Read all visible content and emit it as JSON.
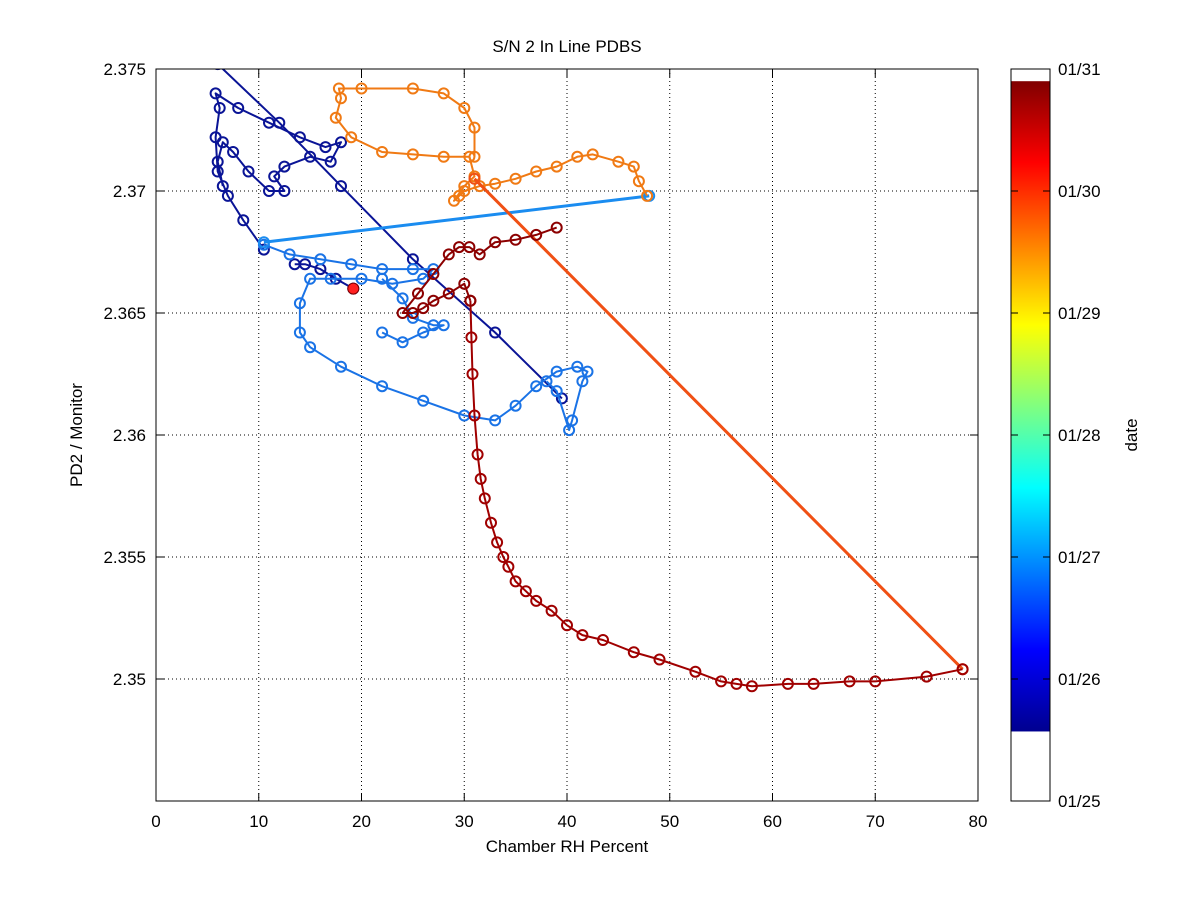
{
  "chart_data": {
    "type": "scatter",
    "title": "S/N 2 In Line PDBS",
    "xlabel": "Chamber RH Percent",
    "ylabel": "PD2 / Monitor",
    "xlim": [
      0,
      80
    ],
    "ylim": [
      2.345,
      2.375
    ],
    "xticks": [
      "0",
      "10",
      "20",
      "30",
      "40",
      "50",
      "60",
      "70",
      "80"
    ],
    "yticks": [
      "2.35",
      "2.355",
      "2.36",
      "2.365",
      "2.37",
      "2.375"
    ],
    "grid": true,
    "marker": "circle",
    "colormap": "jet",
    "colorbar": {
      "label": "date",
      "ticks": [
        "01/25",
        "01/26",
        "01/27",
        "01/28",
        "01/29",
        "01/30",
        "01/31"
      ],
      "range": [
        0,
        6
      ],
      "gradient_range": [
        0.57,
        5.9
      ],
      "gradient_colors": [
        "#00008f",
        "#0000ff",
        "#0080ff",
        "#00ffff",
        "#80ff80",
        "#ffff00",
        "#ff8000",
        "#ff0000",
        "#800000"
      ]
    },
    "series": [
      {
        "color": "#0a1496",
        "width": 2,
        "points": [
          [
            19.2,
            2.366
          ],
          [
            17.5,
            2.3664
          ],
          [
            16,
            2.3668
          ],
          [
            14.5,
            2.367
          ],
          [
            13.5,
            2.367
          ]
        ]
      },
      {
        "color": "#0a1496",
        "width": 2,
        "points": [
          [
            39.5,
            2.3615
          ],
          [
            33,
            2.3642
          ],
          [
            25,
            2.3672
          ],
          [
            18,
            2.3702
          ],
          [
            12,
            2.3728
          ],
          [
            6,
            2.3752
          ]
        ]
      },
      {
        "color": "#0a1496",
        "width": 2,
        "points": [
          [
            10.5,
            2.3676
          ],
          [
            8.5,
            2.3688
          ],
          [
            7,
            2.3698
          ],
          [
            6,
            2.3708
          ],
          [
            5.8,
            2.3722
          ],
          [
            6.2,
            2.3734
          ],
          [
            5.8,
            2.374
          ],
          [
            8,
            2.3734
          ],
          [
            11,
            2.3728
          ],
          [
            14,
            2.3722
          ],
          [
            16.5,
            2.3718
          ],
          [
            18,
            2.372
          ],
          [
            17,
            2.3712
          ],
          [
            15,
            2.3714
          ],
          [
            12.5,
            2.371
          ],
          [
            11.5,
            2.3706
          ],
          [
            12.5,
            2.37
          ],
          [
            11,
            2.37
          ],
          [
            9,
            2.3708
          ],
          [
            7.5,
            2.3716
          ],
          [
            6.5,
            2.372
          ],
          [
            6,
            2.3712
          ],
          [
            6.5,
            2.3702
          ]
        ]
      },
      {
        "color": "#1a73e6",
        "width": 2,
        "points": [
          [
            10.5,
            2.3678
          ],
          [
            13,
            2.3674
          ],
          [
            16,
            2.3672
          ],
          [
            19,
            2.367
          ],
          [
            22,
            2.3668
          ],
          [
            25,
            2.3668
          ],
          [
            27,
            2.3668
          ],
          [
            26,
            2.3664
          ],
          [
            23,
            2.3662
          ],
          [
            20,
            2.3664
          ],
          [
            17,
            2.3664
          ],
          [
            15,
            2.3664
          ],
          [
            14,
            2.3654
          ],
          [
            14,
            2.3642
          ],
          [
            15,
            2.3636
          ],
          [
            18,
            2.3628
          ],
          [
            22,
            2.362
          ],
          [
            26,
            2.3614
          ],
          [
            30,
            2.3608
          ],
          [
            33,
            2.3606
          ],
          [
            35,
            2.3612
          ],
          [
            37,
            2.362
          ],
          [
            39,
            2.3626
          ],
          [
            41,
            2.3628
          ],
          [
            42,
            2.3626
          ],
          [
            41.5,
            2.3622
          ],
          [
            40.5,
            2.3606
          ],
          [
            40.2,
            2.3602
          ],
          [
            39,
            2.3618
          ],
          [
            38,
            2.3622
          ]
        ]
      },
      {
        "color": "#1a73e6",
        "width": 2,
        "points": [
          [
            22,
            2.3664
          ],
          [
            24,
            2.3656
          ],
          [
            25,
            2.3648
          ],
          [
            27,
            2.3645
          ],
          [
            28,
            2.3645
          ],
          [
            26,
            2.3642
          ],
          [
            24,
            2.3638
          ],
          [
            22,
            2.3642
          ]
        ]
      },
      {
        "color": "#1a8cf0",
        "width": 3,
        "points": [
          [
            10.5,
            2.3679
          ],
          [
            48,
            2.3698
          ]
        ]
      },
      {
        "color": "#f07a14",
        "width": 2,
        "points": [
          [
            47.8,
            2.3698
          ],
          [
            47,
            2.3704
          ],
          [
            46.5,
            2.371
          ],
          [
            45,
            2.3712
          ],
          [
            42.5,
            2.3715
          ],
          [
            41,
            2.3714
          ],
          [
            39,
            2.371
          ],
          [
            37,
            2.3708
          ],
          [
            35,
            2.3705
          ],
          [
            33,
            2.3703
          ],
          [
            31.5,
            2.3702
          ],
          [
            30,
            2.37
          ],
          [
            29.5,
            2.3698
          ],
          [
            29,
            2.3696
          ],
          [
            30,
            2.3702
          ],
          [
            31,
            2.3706
          ],
          [
            30.5,
            2.3714
          ],
          [
            28,
            2.3714
          ],
          [
            25,
            2.3715
          ],
          [
            22,
            2.3716
          ],
          [
            19,
            2.3722
          ],
          [
            17.5,
            2.373
          ],
          [
            18,
            2.3738
          ],
          [
            17.8,
            2.3742
          ],
          [
            20,
            2.3742
          ],
          [
            25,
            2.3742
          ],
          [
            28,
            2.374
          ],
          [
            30,
            2.3734
          ],
          [
            31,
            2.3726
          ],
          [
            31,
            2.3714
          ]
        ]
      },
      {
        "color": "#f05014",
        "width": 3,
        "points": [
          [
            31,
            2.3705
          ],
          [
            78.5,
            2.3504
          ]
        ]
      },
      {
        "color": "#a00000",
        "width": 2,
        "points": [
          [
            78.5,
            2.3504
          ],
          [
            75,
            2.3501
          ],
          [
            70,
            2.3499
          ],
          [
            67.5,
            2.3499
          ],
          [
            64,
            2.3498
          ],
          [
            61.5,
            2.3498
          ],
          [
            58,
            2.3497
          ],
          [
            56.5,
            2.3498
          ],
          [
            55,
            2.3499
          ],
          [
            52.5,
            2.3503
          ],
          [
            49,
            2.3508
          ],
          [
            46.5,
            2.3511
          ],
          [
            43.5,
            2.3516
          ],
          [
            41.5,
            2.3518
          ],
          [
            40,
            2.3522
          ],
          [
            38.5,
            2.3528
          ],
          [
            37,
            2.3532
          ],
          [
            36,
            2.3536
          ],
          [
            35,
            2.354
          ],
          [
            34.3,
            2.3546
          ],
          [
            33.8,
            2.355
          ],
          [
            33.2,
            2.3556
          ],
          [
            32.6,
            2.3564
          ],
          [
            32,
            2.3574
          ],
          [
            31.6,
            2.3582
          ],
          [
            31.3,
            2.3592
          ],
          [
            31,
            2.3608
          ],
          [
            30.8,
            2.3625
          ],
          [
            30.7,
            2.364
          ],
          [
            30.6,
            2.3655
          ]
        ]
      },
      {
        "color": "#8c0000",
        "width": 2,
        "points": [
          [
            30.6,
            2.3655
          ],
          [
            30,
            2.3662
          ],
          [
            28.5,
            2.3658
          ],
          [
            27,
            2.3655
          ],
          [
            26,
            2.3652
          ],
          [
            25,
            2.365
          ],
          [
            24,
            2.365
          ],
          [
            25.5,
            2.3658
          ],
          [
            27,
            2.3666
          ],
          [
            28.5,
            2.3674
          ],
          [
            29.5,
            2.3677
          ],
          [
            30.5,
            2.3677
          ],
          [
            31.5,
            2.3674
          ],
          [
            33,
            2.3679
          ],
          [
            35,
            2.368
          ],
          [
            37,
            2.3682
          ],
          [
            39,
            2.3685
          ]
        ]
      }
    ],
    "highlight_point": {
      "x": 19.2,
      "y": 2.366,
      "color": "#ff2020"
    }
  }
}
